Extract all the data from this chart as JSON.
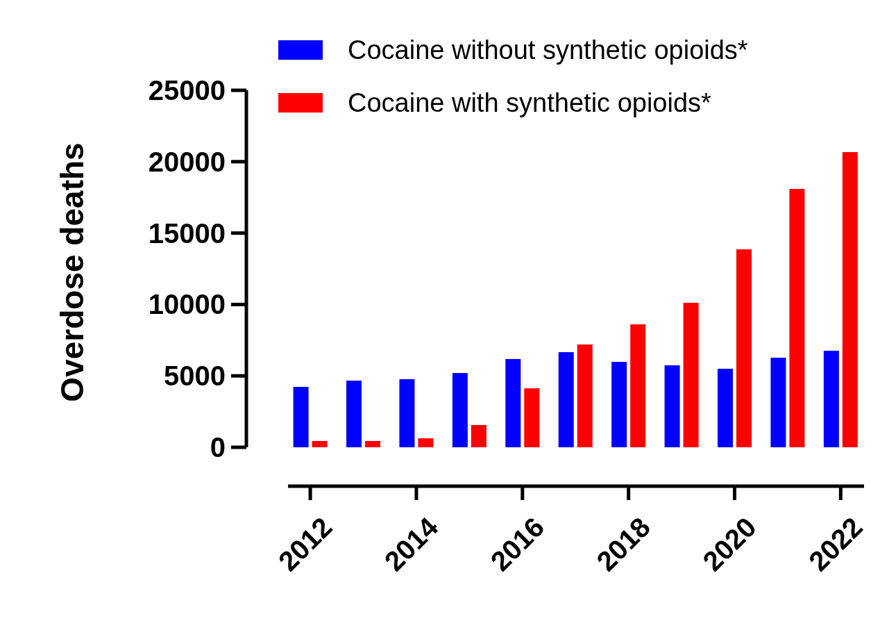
{
  "chart_data": {
    "type": "bar",
    "ylabel": "Overdose deaths",
    "x": [
      2012,
      2013,
      2014,
      2015,
      2016,
      2017,
      2018,
      2019,
      2020,
      2021,
      2022
    ],
    "xlim": [
      2011.58,
      2022.44
    ],
    "xticks": [
      2012,
      2014,
      2016,
      2018,
      2020,
      2022
    ],
    "ylim": [
      0,
      25000
    ],
    "yticks": [
      0,
      5000,
      10000,
      15000,
      20000,
      25000
    ],
    "legend": "top",
    "grid": false,
    "series": [
      {
        "name": "Cocaine without synthetic opioids*",
        "color": "#0000ff",
        "values": [
          4230,
          4670,
          4770,
          5200,
          6180,
          6660,
          5980,
          5740,
          5500,
          6270,
          6760
        ]
      },
      {
        "name": "Cocaine with synthetic opioids*",
        "color": "#ff0000",
        "values": [
          440,
          440,
          630,
          1560,
          4130,
          7200,
          8610,
          10120,
          13860,
          18090,
          20670
        ]
      }
    ]
  }
}
